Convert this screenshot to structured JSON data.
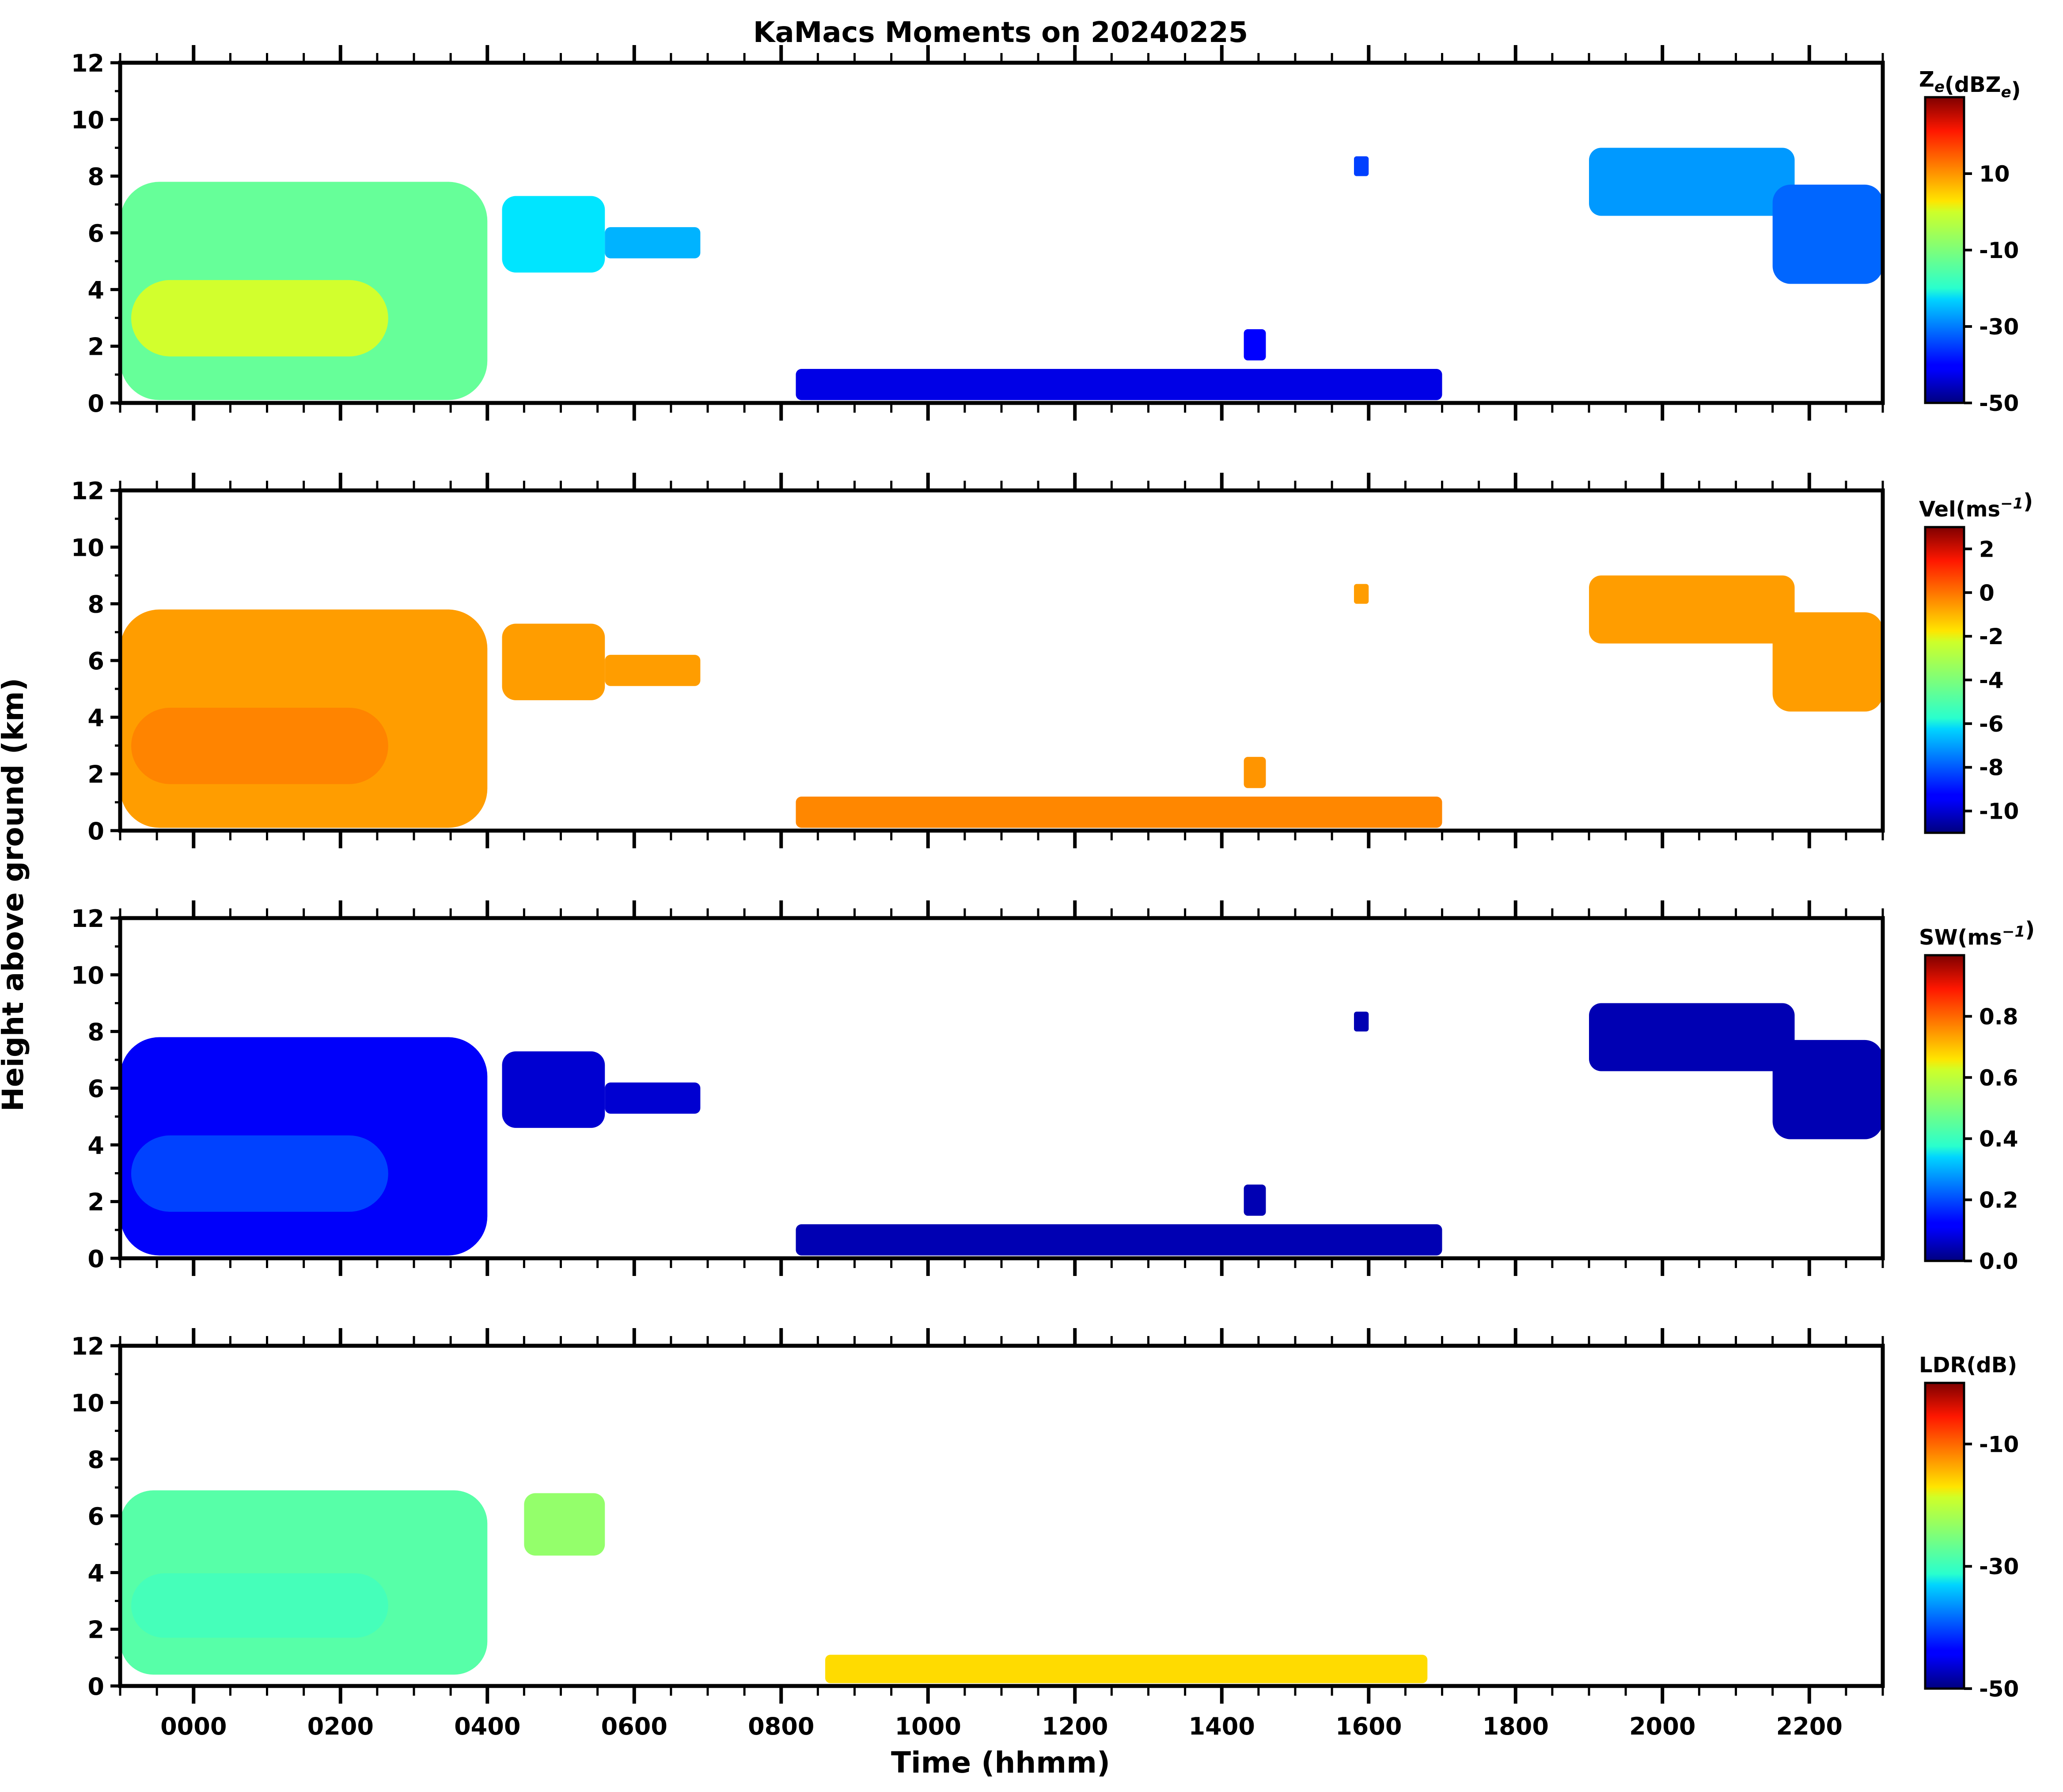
{
  "title": "KaMacs Moments on 20240225",
  "xlabel": "Time (hhmm)",
  "ylabel": "Height above ground (km)",
  "chart_data": [
    {
      "type": "heatmap",
      "panel": "reflectivity",
      "colorbar_label_parts": [
        "Z",
        "e",
        "(dBZ",
        "e",
        ")"
      ],
      "colorbar_ticks": [
        "10",
        "-10",
        "-30",
        "-50"
      ],
      "colorbar_tick_values": [
        10,
        -10,
        -30,
        -50
      ],
      "clim": [
        -50,
        30
      ],
      "xlim": [
        -100,
        2300
      ],
      "ylim": [
        0,
        12
      ],
      "y_ticks": [
        "0",
        "2",
        "4",
        "6",
        "8",
        "10",
        "12"
      ],
      "x_tick_labels_shown": false,
      "colormap": "jet",
      "echoes": [
        {
          "t0": -100,
          "t1": 400,
          "h0": 0.1,
          "h1": 7.8,
          "value": -12,
          "core": -2
        },
        {
          "t0": 420,
          "t1": 560,
          "h0": 4.6,
          "h1": 7.3,
          "value": -22
        },
        {
          "t0": 560,
          "t1": 690,
          "h0": 5.1,
          "h1": 6.2,
          "value": -26
        },
        {
          "t0": 820,
          "t1": 1700,
          "h0": 0.1,
          "h1": 1.2,
          "value": -42
        },
        {
          "t0": 1430,
          "t1": 1460,
          "h0": 1.5,
          "h1": 2.6,
          "value": -40
        },
        {
          "t0": 1580,
          "t1": 1600,
          "h0": 8.0,
          "h1": 8.7,
          "value": -35
        },
        {
          "t0": 1900,
          "t1": 2180,
          "h0": 6.6,
          "h1": 9.0,
          "value": -28
        },
        {
          "t0": 2150,
          "t1": 2300,
          "h0": 4.2,
          "h1": 7.7,
          "value": -32
        }
      ]
    },
    {
      "type": "heatmap",
      "panel": "velocity",
      "colorbar_label_parts": [
        "Vel(ms",
        "−1",
        ")"
      ],
      "colorbar_ticks": [
        "2",
        "0",
        "-2",
        "-4",
        "-6",
        "-8",
        "-10"
      ],
      "colorbar_tick_values": [
        2,
        0,
        -2,
        -4,
        -6,
        -8,
        -10
      ],
      "clim": [
        -11,
        3
      ],
      "xlim": [
        -100,
        2300
      ],
      "ylim": [
        0,
        12
      ],
      "y_ticks": [
        "0",
        "2",
        "4",
        "6",
        "8",
        "10",
        "12"
      ],
      "x_tick_labels_shown": false,
      "colormap": "jet",
      "echoes": [
        {
          "t0": -100,
          "t1": 400,
          "h0": 0.1,
          "h1": 7.8,
          "value": -0.9,
          "core": -0.5
        },
        {
          "t0": 420,
          "t1": 560,
          "h0": 4.6,
          "h1": 7.3,
          "value": -0.9
        },
        {
          "t0": 560,
          "t1": 690,
          "h0": 5.1,
          "h1": 6.2,
          "value": -0.9
        },
        {
          "t0": 820,
          "t1": 1700,
          "h0": 0.1,
          "h1": 1.2,
          "value": -0.6
        },
        {
          "t0": 1430,
          "t1": 1460,
          "h0": 1.5,
          "h1": 2.6,
          "value": -0.8
        },
        {
          "t0": 1580,
          "t1": 1600,
          "h0": 8.0,
          "h1": 8.7,
          "value": -0.9
        },
        {
          "t0": 1900,
          "t1": 2180,
          "h0": 6.6,
          "h1": 9.0,
          "value": -0.9
        },
        {
          "t0": 2150,
          "t1": 2300,
          "h0": 4.2,
          "h1": 7.7,
          "value": -0.9
        }
      ]
    },
    {
      "type": "heatmap",
      "panel": "spectrum_width",
      "colorbar_label_parts": [
        "SW(ms",
        "−1",
        ")"
      ],
      "colorbar_ticks": [
        "0.8",
        "0.6",
        "0.4",
        "0.2",
        "0.0"
      ],
      "colorbar_tick_values": [
        0.8,
        0.6,
        0.4,
        0.2,
        0.0
      ],
      "clim": [
        0,
        1
      ],
      "xlim": [
        -100,
        2300
      ],
      "ylim": [
        0,
        12
      ],
      "y_ticks": [
        "0",
        "2",
        "4",
        "6",
        "8",
        "10",
        "12"
      ],
      "x_tick_labels_shown": false,
      "colormap": "jet",
      "echoes": [
        {
          "t0": -100,
          "t1": 400,
          "h0": 0.1,
          "h1": 7.8,
          "value": 0.12,
          "core": 0.2
        },
        {
          "t0": 420,
          "t1": 560,
          "h0": 4.6,
          "h1": 7.3,
          "value": 0.08
        },
        {
          "t0": 560,
          "t1": 690,
          "h0": 5.1,
          "h1": 6.2,
          "value": 0.08
        },
        {
          "t0": 820,
          "t1": 1700,
          "h0": 0.1,
          "h1": 1.2,
          "value": 0.05
        },
        {
          "t0": 1430,
          "t1": 1460,
          "h0": 1.5,
          "h1": 2.6,
          "value": 0.05
        },
        {
          "t0": 1580,
          "t1": 1600,
          "h0": 8.0,
          "h1": 8.7,
          "value": 0.05
        },
        {
          "t0": 1900,
          "t1": 2180,
          "h0": 6.6,
          "h1": 9.0,
          "value": 0.05
        },
        {
          "t0": 2150,
          "t1": 2300,
          "h0": 4.2,
          "h1": 7.7,
          "value": 0.05
        }
      ]
    },
    {
      "type": "heatmap",
      "panel": "ldr",
      "colorbar_label_parts": [
        "LDR(dB)"
      ],
      "colorbar_ticks": [
        "-10",
        "-30",
        "-50"
      ],
      "colorbar_tick_values": [
        -10,
        -30,
        -50
      ],
      "clim": [
        -50,
        0
      ],
      "xlim": [
        -100,
        2300
      ],
      "ylim": [
        0,
        12
      ],
      "y_ticks": [
        "0",
        "2",
        "4",
        "6",
        "8",
        "10",
        "12"
      ],
      "x_tick_labels_shown": true,
      "x_ticks": [
        "0000",
        "0200",
        "0400",
        "0600",
        "0800",
        "1000",
        "1200",
        "1400",
        "1600",
        "1800",
        "2000",
        "2200"
      ],
      "x_tick_values": [
        0,
        200,
        400,
        600,
        800,
        1000,
        1200,
        1400,
        1600,
        1800,
        2000,
        2200
      ],
      "colormap": "jet",
      "echoes": [
        {
          "t0": -100,
          "t1": 400,
          "h0": 0.4,
          "h1": 6.9,
          "value": -27,
          "core": -28
        },
        {
          "t0": 450,
          "t1": 560,
          "h0": 4.6,
          "h1": 6.8,
          "value": -24
        },
        {
          "t0": 860,
          "t1": 1680,
          "h0": 0.1,
          "h1": 1.1,
          "value": -17
        }
      ]
    }
  ]
}
